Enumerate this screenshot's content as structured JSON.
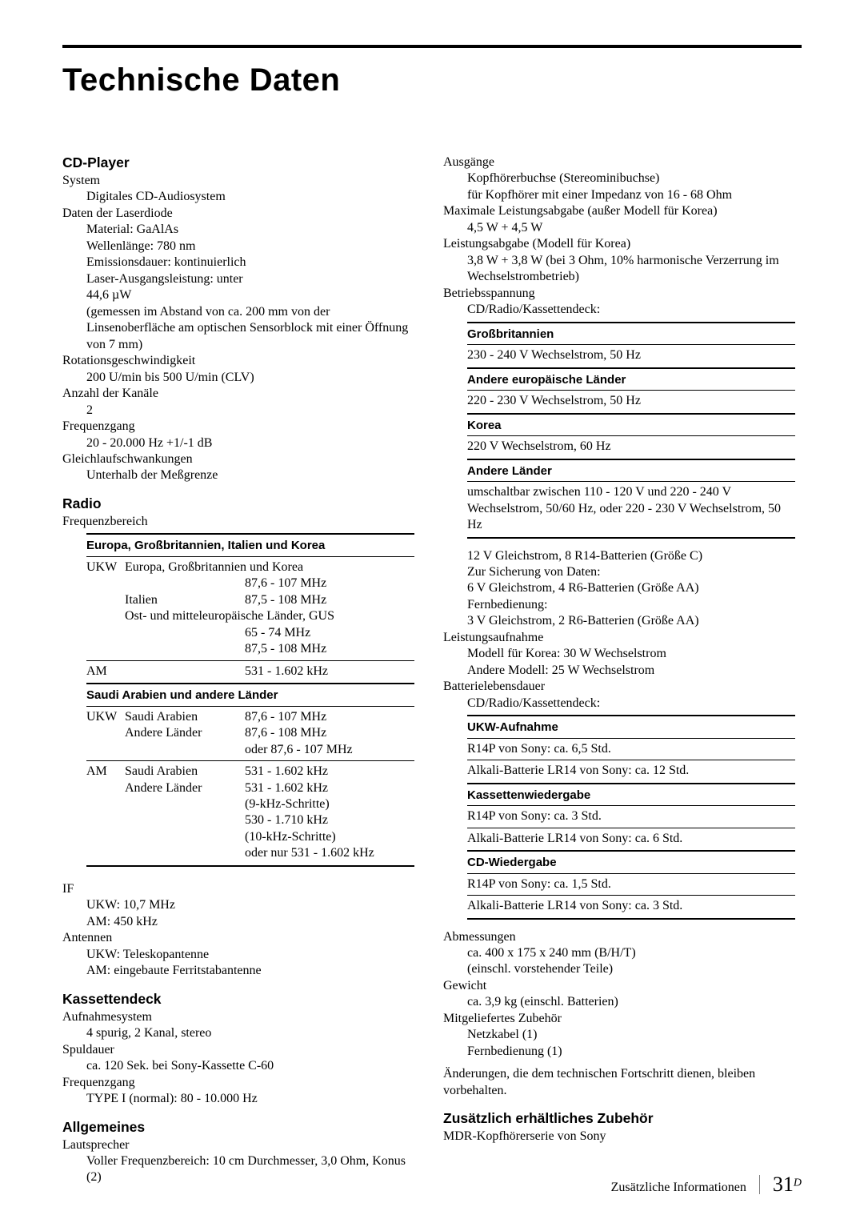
{
  "title": "Technische Daten",
  "footer": {
    "section": "Zusätzliche Informationen",
    "page": "31",
    "sup": "D"
  },
  "left": {
    "cd": {
      "head": "CD-Player",
      "sys_l": "System",
      "sys_v": "Digitales CD-Audiosystem",
      "ld_l": "Daten der Laserdiode",
      "ld_1": "Material: GaAlAs",
      "ld_2": "Wellenlänge: 780 nm",
      "ld_3": "Emissionsdauer: kontinuierlich",
      "ld_4": "Laser-Ausgangsleistung: unter",
      "ld_5": "44,6 µW",
      "ld_6": "(gemessen im Abstand von ca. 200 mm von der Linsenoberfläche am optischen Sensorblock mit einer Öffnung von 7 mm)",
      "rot_l": "Rotationsgeschwindigkeit",
      "rot_v": "200 U/min bis 500 U/min (CLV)",
      "ch_l": "Anzahl der Kanäle",
      "ch_v": "2",
      "fr_l": "Frequenzgang",
      "fr_v": "20 - 20.000 Hz +1/-1 dB",
      "wf_l": "Gleichlaufschwankungen",
      "wf_v": "Unterhalb der Meßgrenze"
    },
    "radio": {
      "head": "Radio",
      "freq_l": "Frequenzbereich",
      "grp1": "Europa, Großbritannien, Italien und Korea",
      "r1a": "UKW",
      "r1b": "Europa, Großbritannien und Korea",
      "r1c_blank": "",
      "r1c": "87,6 - 107 MHz",
      "r2b": "Italien",
      "r2c": "87,5 - 108 MHz",
      "r3b": "Ost- und mitteleuropäische Länder, GUS",
      "r3c1": "65 - 74 MHz",
      "r3c2": "87,5 - 108 MHz",
      "r4a": "AM",
      "r4c": "531 - 1.602 kHz",
      "grp2": "Saudi Arabien und andere Länder",
      "r5a": "UKW",
      "r5b": "Saudi Arabien",
      "r5c": "87,6 - 107 MHz",
      "r6b": "Andere Länder",
      "r6c1": "87,6 - 108 MHz",
      "r6c2": "oder 87,6 - 107 MHz",
      "r7a": "AM",
      "r7b": "Saudi Arabien",
      "r7c": "531 - 1.602 kHz",
      "r8b": "Andere Länder",
      "r8c1": "531 - 1.602 kHz",
      "r8c2": "(9-kHz-Schritte)",
      "r8c3": "530 - 1.710 kHz",
      "r8c4": "(10-kHz-Schritte)",
      "r8c5": "oder nur 531 - 1.602 kHz",
      "if_l": "IF",
      "if_1": "UKW: 10,7 MHz",
      "if_2": "AM: 450 kHz",
      "ant_l": "Antennen",
      "ant_1": "UKW: Teleskopantenne",
      "ant_2": "AM: eingebaute Ferritstabantenne"
    },
    "kass": {
      "head": "Kassettendeck",
      "rec_l": "Aufnahmesystem",
      "rec_v": "4 spurig, 2 Kanal, stereo",
      "sp_l": "Spuldauer",
      "sp_v": "ca. 120 Sek. bei Sony-Kassette C-60",
      "fr_l": "Frequenzgang",
      "fr_v": "TYPE I (normal): 80 - 10.000 Hz"
    },
    "allg": {
      "head": "Allgemeines",
      "ls_l": "Lautsprecher",
      "ls_v": "Voller Frequenzbereich: 10 cm Durchmesser, 3,0 Ohm, Konus (2)"
    }
  },
  "right": {
    "out_l": "Ausgänge",
    "out_1": "Kopfhörerbuchse (Stereominibuchse)",
    "out_2": "für Kopfhörer mit einer Impedanz von 16 - 68 Ohm",
    "max_l": "Maximale Leistungsabgabe (außer Modell für Korea)",
    "max_v": "4,5 W + 4,5 W",
    "pw_l": "Leistungsabgabe (Modell für Korea)",
    "pw_v": "3,8 W + 3,8 W (bei 3 Ohm, 10% harmonische Verzerrung im Wechselstrombetrieb)",
    "volt_l": "Betriebsspannung",
    "volt_sub": "CD/Radio/Kassettendeck:",
    "vt_h1": "Großbritannien",
    "vt_v1": "230 - 240 V Wechselstrom, 50 Hz",
    "vt_h2": "Andere europäische Länder",
    "vt_v2": "220 - 230 V Wechselstrom, 50 Hz",
    "vt_h3": "Korea",
    "vt_v3": "220 V Wechselstrom, 60 Hz",
    "vt_h4": "Andere Länder",
    "vt_v4": "umschaltbar zwischen 110 - 120 V und 220 - 240 V Wechselstrom, 50/60 Hz, oder 220 - 230 V Wechselstrom, 50 Hz",
    "dc_1": "12 V Gleichstrom, 8 R14-Batterien (Größe C)",
    "dc_2": "Zur Sicherung von Daten:",
    "dc_3": "6 V Gleichstrom, 4 R6-Batterien (Größe AA)",
    "dc_4": "Fernbedienung:",
    "dc_5": "3 V Gleichstrom, 2 R6-Batterien (Größe AA)",
    "la_l": "Leistungsaufnahme",
    "la_1": "Modell für Korea: 30 W Wechselstrom",
    "la_2": "Andere Modell: 25 W Wechselstrom",
    "bl_l": "Batterielebensdauer",
    "bl_sub": "CD/Radio/Kassettendeck:",
    "bl_h1": "UKW-Aufnahme",
    "bl_v1a": "R14P von Sony: ca. 6,5 Std.",
    "bl_v1b": "Alkali-Batterie LR14 von Sony: ca. 12 Std.",
    "bl_h2": "Kassettenwiedergabe",
    "bl_v2a": "R14P von Sony: ca. 3 Std.",
    "bl_v2b": "Alkali-Batterie LR14 von Sony: ca. 6 Std.",
    "bl_h3": "CD-Wiedergabe",
    "bl_v3a": "R14P von Sony: ca. 1,5 Std.",
    "bl_v3b": "Alkali-Batterie LR14 von Sony: ca. 3 Std.",
    "dim_l": "Abmessungen",
    "dim_1": "ca. 400 x 175 x 240 mm (B/H/T)",
    "dim_2": "(einschl. vorstehender Teile)",
    "w_l": "Gewicht",
    "w_v": "ca. 3,9 kg (einschl. Batterien)",
    "acc_l": "Mitgeliefertes Zubehör",
    "acc_1": "Netzkabel (1)",
    "acc_2": "Fernbedienung (1)",
    "note": "Änderungen, die dem technischen Fortschritt dienen, bleiben vorbehalten.",
    "opt_head": "Zusätzlich erhältliches Zubehör",
    "opt_v": "MDR-Kopfhörerserie von Sony"
  }
}
